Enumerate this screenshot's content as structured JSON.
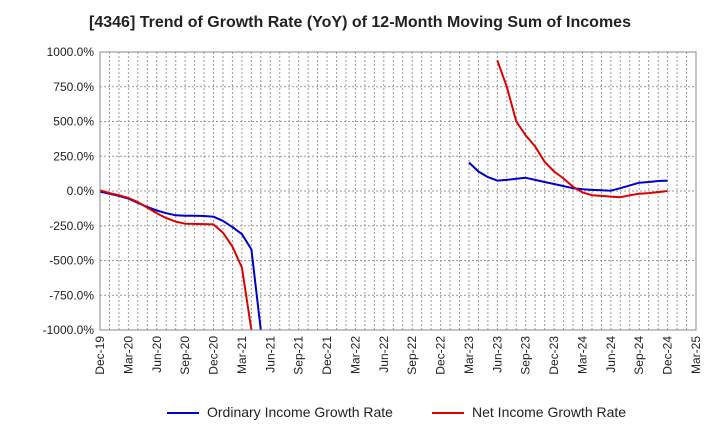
{
  "chart_data": {
    "type": "line",
    "title": "[4346]  Trend of Growth Rate (YoY) of 12-Month Moving Sum of Incomes",
    "xlabel": "",
    "ylabel": "",
    "ylim": [
      -1000,
      1000
    ],
    "yticks": [
      "1000.0%",
      "750.0%",
      "500.0%",
      "250.0%",
      "0.0%",
      "-250.0%",
      "-500.0%",
      "-750.0%",
      "-1000.0%"
    ],
    "x_tick_labels": [
      "Dec-19",
      "Mar-20",
      "Jun-20",
      "Sep-20",
      "Dec-20",
      "Mar-21",
      "Jun-21",
      "Sep-21",
      "Dec-21",
      "Mar-22",
      "Jun-22",
      "Sep-22",
      "Dec-22",
      "Mar-23",
      "Jun-23",
      "Sep-23",
      "Dec-23",
      "Mar-24",
      "Jun-24",
      "Sep-24",
      "Dec-24",
      "Mar-25"
    ],
    "x_range": [
      "Dec-19",
      "Mar-25"
    ],
    "grid": true,
    "legend_position": "bottom",
    "series": [
      {
        "name": "Ordinary Income Growth Rate",
        "color": "#0000cc",
        "points": [
          [
            "Dec-19",
            -5
          ],
          [
            "Jan-20",
            -20
          ],
          [
            "Feb-20",
            -35
          ],
          [
            "Mar-20",
            -55
          ],
          [
            "Apr-20",
            -85
          ],
          [
            "May-20",
            -115
          ],
          [
            "Jun-20",
            -140
          ],
          [
            "Jul-20",
            -160
          ],
          [
            "Aug-20",
            -175
          ],
          [
            "Sep-20",
            -178
          ],
          [
            "Oct-20",
            -178
          ],
          [
            "Nov-20",
            -180
          ],
          [
            "Dec-20",
            -185
          ],
          [
            "Jan-21",
            -215
          ],
          [
            "Feb-21",
            -260
          ],
          [
            "Mar-21",
            -310
          ],
          [
            "Apr-21",
            -420
          ],
          [
            "May-21",
            -1000
          ],
          [
            "Mar-23",
            205
          ],
          [
            "Apr-23",
            140
          ],
          [
            "May-23",
            100
          ],
          [
            "Jun-23",
            75
          ],
          [
            "Jul-23",
            80
          ],
          [
            "Aug-23",
            88
          ],
          [
            "Sep-23",
            95
          ],
          [
            "Oct-23",
            80
          ],
          [
            "Nov-23",
            65
          ],
          [
            "Dec-23",
            50
          ],
          [
            "Jan-24",
            35
          ],
          [
            "Feb-24",
            20
          ],
          [
            "Mar-24",
            12
          ],
          [
            "Apr-24",
            8
          ],
          [
            "May-24",
            5
          ],
          [
            "Jun-24",
            2
          ],
          [
            "Jul-24",
            20
          ],
          [
            "Aug-24",
            40
          ],
          [
            "Sep-24",
            60
          ],
          [
            "Oct-24",
            65
          ],
          [
            "Nov-24",
            72
          ],
          [
            "Dec-24",
            75
          ]
        ]
      },
      {
        "name": "Net Income Growth Rate",
        "color": "#dd0000",
        "points": [
          [
            "Dec-19",
            5
          ],
          [
            "Jan-20",
            -15
          ],
          [
            "Feb-20",
            -30
          ],
          [
            "Mar-20",
            -50
          ],
          [
            "Apr-20",
            -80
          ],
          [
            "May-20",
            -120
          ],
          [
            "Jun-20",
            -160
          ],
          [
            "Jul-20",
            -195
          ],
          [
            "Aug-20",
            -220
          ],
          [
            "Sep-20",
            -235
          ],
          [
            "Oct-20",
            -237
          ],
          [
            "Nov-20",
            -238
          ],
          [
            "Dec-20",
            -240
          ],
          [
            "Jan-21",
            -300
          ],
          [
            "Feb-21",
            -400
          ],
          [
            "Mar-21",
            -550
          ],
          [
            "Apr-21",
            -1000
          ],
          [
            "Jun-23",
            940
          ],
          [
            "Jul-23",
            750
          ],
          [
            "Aug-23",
            500
          ],
          [
            "Sep-23",
            400
          ],
          [
            "Oct-23",
            320
          ],
          [
            "Nov-23",
            210
          ],
          [
            "Dec-23",
            140
          ],
          [
            "Jan-24",
            90
          ],
          [
            "Feb-24",
            30
          ],
          [
            "Mar-24",
            -10
          ],
          [
            "Apr-24",
            -30
          ],
          [
            "May-24",
            -35
          ],
          [
            "Jun-24",
            -40
          ],
          [
            "Jul-24",
            -45
          ],
          [
            "Aug-24",
            -30
          ],
          [
            "Sep-24",
            -20
          ],
          [
            "Oct-24",
            -15
          ],
          [
            "Nov-24",
            -8
          ],
          [
            "Dec-24",
            0
          ]
        ]
      }
    ]
  }
}
